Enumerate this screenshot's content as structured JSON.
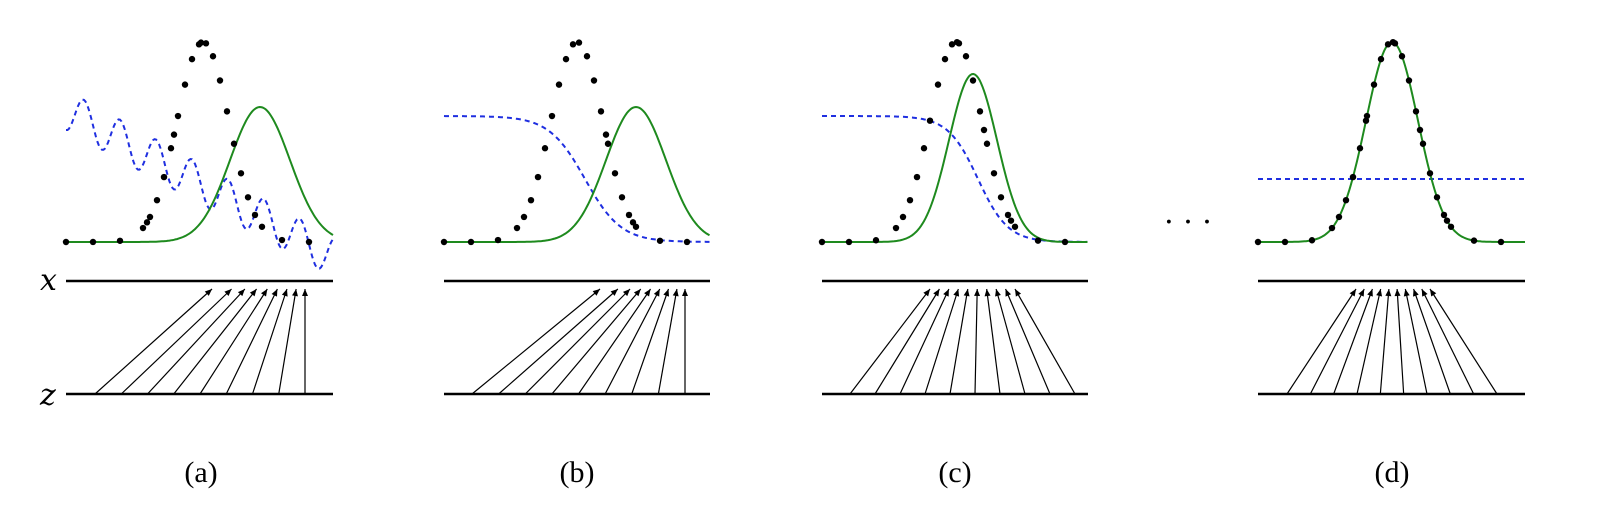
{
  "figure": {
    "axis_labels": {
      "x": "x",
      "z": "z"
    },
    "ellipsis": "· · ·",
    "colors": {
      "data_distribution": "#000000",
      "generator_distribution": "#1e8a1e",
      "discriminator": "#1f2fe0",
      "mapping_lines": "#000000"
    },
    "panels": [
      {
        "caption": "(a)",
        "data_dots": "black gaussian",
        "generator_curve": "green gaussian shifted right",
        "discriminator_curve": "blue dashed oscillating, decreasing",
        "mapping": "z maps to x, compressed to the right"
      },
      {
        "caption": "(b)",
        "data_dots": "black gaussian",
        "generator_curve": "green gaussian shifted right",
        "discriminator_curve": "blue dashed smooth sigmoid, high then low",
        "mapping": "z maps to x, compressed to the right"
      },
      {
        "caption": "(c)",
        "data_dots": "black gaussian",
        "generator_curve": "green gaussian close to data",
        "discriminator_curve": "blue dashed smooth sigmoid, high then low",
        "mapping": "z maps to x, converging near data mode"
      },
      {
        "caption": "(d)",
        "data_dots": "black gaussian",
        "generator_curve": "green gaussian matching data",
        "discriminator_curve": "blue dashed constant at one half",
        "mapping": "z maps to x, symmetric convergence on data mode"
      }
    ]
  }
}
